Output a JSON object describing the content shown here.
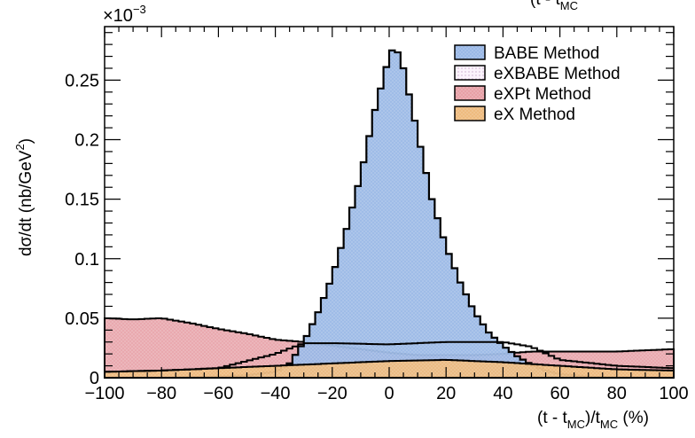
{
  "chart_data": {
    "type": "histogram",
    "title": "",
    "corner_label_top": "(t - t",
    "corner_label_sub": "MC",
    "xlabel_main": "(t - t",
    "xlabel_sub": "MC",
    "xlabel_mid": ")/t",
    "xlabel_sub2": "MC",
    "xlabel_tail": " (%)",
    "ylabel_main": "dσ/dt (nb/GeV",
    "ylabel_sup": "2",
    "ylabel_tail": ")",
    "y_exponent_label": "×10",
    "y_exponent_power": "−3",
    "xlim": [
      -100,
      100
    ],
    "ylim": [
      0,
      0.295
    ],
    "x_ticks": [
      -100,
      -80,
      -60,
      -40,
      -20,
      0,
      20,
      40,
      60,
      80,
      100
    ],
    "x_tick_labels": [
      "−100",
      "−80",
      "−60",
      "−40",
      "−20",
      "0",
      "20",
      "40",
      "60",
      "80",
      "100"
    ],
    "y_ticks": [
      0,
      0.05,
      0.1,
      0.15,
      0.2,
      0.25
    ],
    "y_tick_labels": [
      "0",
      "0.05",
      "0.1",
      "0.15",
      "0.2",
      "0.25"
    ],
    "grid": false,
    "legend_position": "top-right",
    "series": [
      {
        "name": "BABE Method",
        "fill": "#9ab8e6",
        "x": [
          -100,
          -80,
          -60,
          -50,
          -40,
          -35,
          -30,
          -25,
          -20,
          -15,
          -10,
          -5,
          0,
          2,
          5,
          10,
          15,
          20,
          25,
          30,
          35,
          40,
          45,
          50,
          55,
          60,
          70,
          80,
          100
        ],
        "values": [
          0,
          0,
          0.001,
          0.002,
          0.005,
          0.012,
          0.03,
          0.055,
          0.085,
          0.125,
          0.17,
          0.225,
          0.27,
          0.28,
          0.26,
          0.205,
          0.15,
          0.11,
          0.08,
          0.055,
          0.038,
          0.027,
          0.018,
          0.011,
          0.006,
          0.003,
          0.001,
          0,
          0
        ]
      },
      {
        "name": "eXBABE Method",
        "fill": "#f4e6f7",
        "x": [
          -100,
          -80,
          -60,
          -40,
          -30,
          -20,
          0,
          20,
          40,
          50,
          60,
          80,
          100
        ],
        "values": [
          0.005,
          0.006,
          0.008,
          0.02,
          0.029,
          0.029,
          0.028,
          0.03,
          0.03,
          0.026,
          0.015,
          0.01,
          0.008
        ]
      },
      {
        "name": "eXPt Method",
        "fill": "#e7a0a6",
        "x": [
          -100,
          -90,
          -80,
          -70,
          -60,
          -50,
          -40,
          -30,
          -20,
          -10,
          0,
          10,
          20,
          30,
          40,
          50,
          60,
          70,
          80,
          90,
          100
        ],
        "values": [
          0.05,
          0.049,
          0.05,
          0.046,
          0.041,
          0.037,
          0.032,
          0.03,
          0.027,
          0.024,
          0.021,
          0.019,
          0.019,
          0.019,
          0.02,
          0.022,
          0.022,
          0.022,
          0.022,
          0.023,
          0.024
        ]
      },
      {
        "name": "eX Method",
        "fill": "#eebb7f",
        "x": [
          -100,
          -80,
          -60,
          -40,
          -20,
          0,
          20,
          40,
          60,
          80,
          100
        ],
        "values": [
          0.005,
          0.006,
          0.008,
          0.01,
          0.012,
          0.014,
          0.015,
          0.013,
          0.01,
          0.007,
          0.006
        ]
      }
    ]
  }
}
